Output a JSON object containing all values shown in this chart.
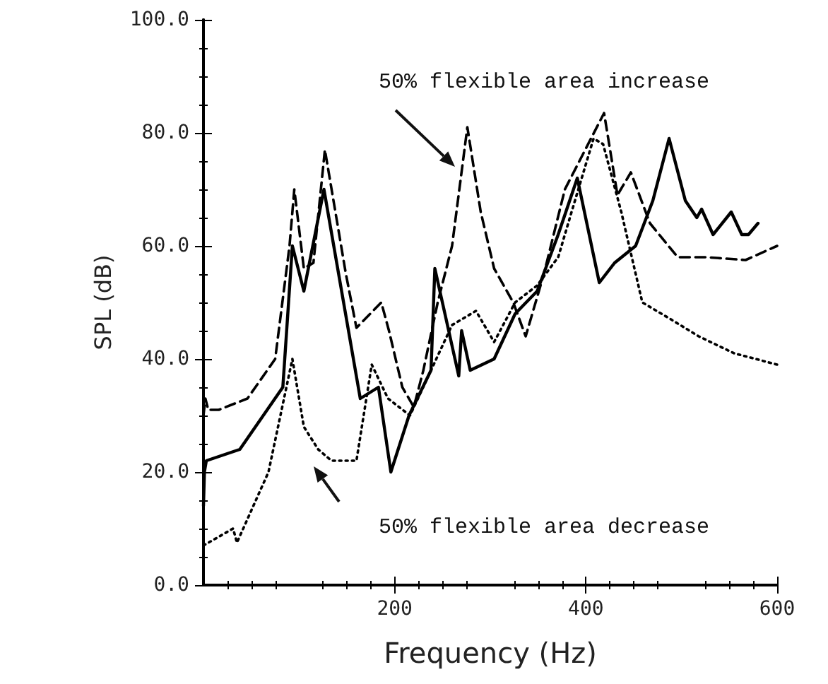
{
  "chart_data": {
    "type": "line",
    "xlabel": "Frequency (Hz)",
    "ylabel": "SPL (dB)",
    "xlim": [
      0,
      600
    ],
    "xticks": [
      200,
      400,
      600
    ],
    "ylim": [
      0,
      100
    ],
    "yticks": [
      {
        "value": 0,
        "label": "0.0"
      },
      {
        "value": 20,
        "label": "20.0"
      },
      {
        "value": 40,
        "label": "40.0"
      },
      {
        "value": 60,
        "label": "60.0"
      },
      {
        "value": 80,
        "label": "80.0"
      },
      {
        "value": 100,
        "label": "100.0"
      }
    ],
    "grid": false,
    "marker": "none",
    "annotations": [
      "50% flexible area increase",
      "50% flexible area decrease"
    ],
    "series": [
      {
        "color": "#000000",
        "line_style": "solid",
        "x": [
          0,
          1,
          3,
          38,
          83,
          93,
          105,
          126,
          164,
          183,
          196,
          215,
          238,
          242,
          267,
          270,
          279,
          304,
          326,
          349,
          371,
          391,
          414,
          430,
          452,
          470,
          487,
          504,
          516,
          521,
          533,
          552,
          563,
          570,
          580
        ],
        "values": [
          14,
          20,
          22,
          24,
          35,
          60,
          52,
          70,
          33,
          35,
          20,
          30,
          38,
          56,
          37,
          45,
          38,
          40,
          48,
          52,
          62,
          72,
          53.5,
          57,
          60,
          68,
          79,
          68,
          65,
          66.5,
          62,
          66,
          62,
          62,
          64
        ]
      },
      {
        "color": "#000000",
        "line_style": "dashed",
        "x": [
          0,
          2,
          5,
          16,
          46,
          75,
          90,
          95,
          105,
          115,
          127,
          149,
          160,
          186,
          194,
          208,
          220,
          230,
          245,
          260,
          276,
          290,
          304,
          324,
          337,
          356,
          378,
          419,
          433,
          447,
          467,
          496,
          526,
          567,
          600
        ],
        "values": [
          30,
          33,
          31,
          31,
          33,
          40,
          60,
          70,
          56,
          57,
          77,
          55,
          45.5,
          50,
          45,
          35,
          31.5,
          38,
          50,
          60,
          81,
          66,
          56,
          50,
          44,
          55,
          70,
          83.5,
          69,
          73,
          64,
          58,
          58,
          57.5,
          60
        ]
      },
      {
        "color": "#000000",
        "line_style": "dotted",
        "x": [
          0,
          31,
          35,
          68,
          83,
          93,
          105,
          120,
          134,
          160,
          176,
          193,
          216,
          238,
          260,
          285,
          304,
          326,
          349,
          371,
          385,
          408,
          418,
          437,
          459,
          489,
          518,
          555,
          600
        ],
        "values": [
          7,
          10,
          7.5,
          20,
          32,
          40,
          28,
          24,
          22,
          22,
          39,
          33,
          30,
          38,
          46,
          48.5,
          43,
          50,
          53,
          58,
          66,
          79,
          78,
          66,
          50,
          47,
          44,
          41,
          39
        ]
      }
    ]
  }
}
